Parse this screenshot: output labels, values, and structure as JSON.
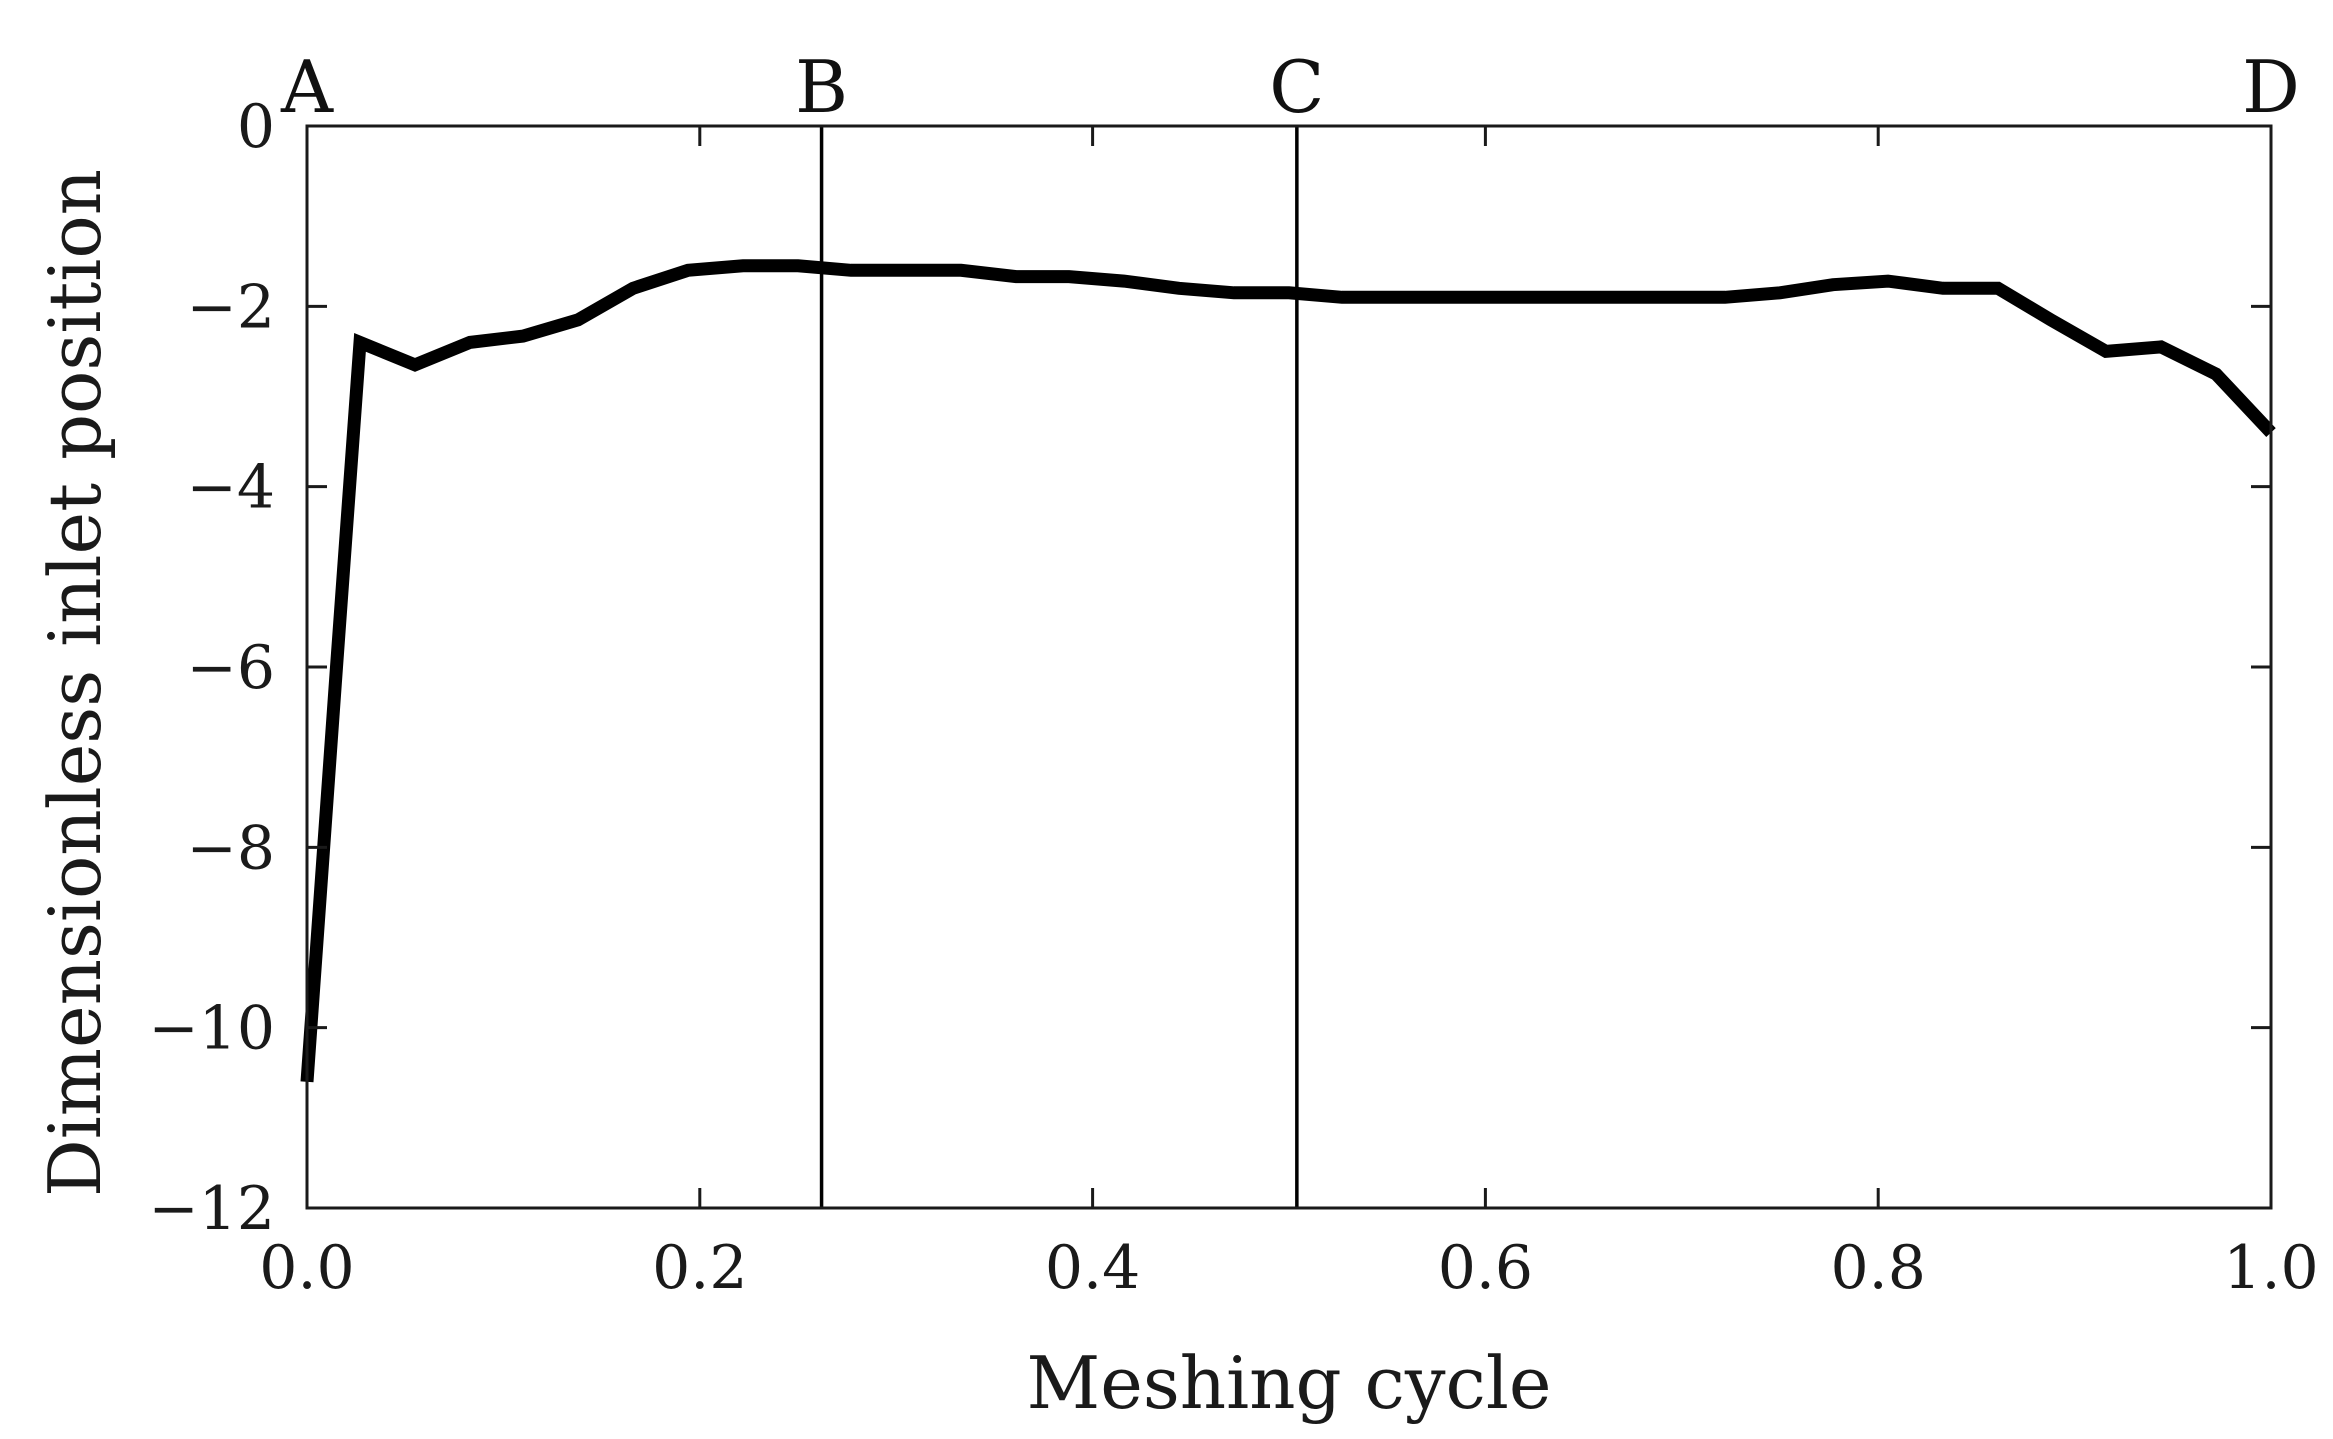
{
  "chart_data": {
    "type": "line",
    "title": "",
    "xlabel": "Meshing cycle",
    "ylabel": "Dimensionless inlet position",
    "xlim": [
      0.0,
      1.0
    ],
    "ylim": [
      -12,
      0
    ],
    "x_ticks": [
      0.0,
      0.2,
      0.4,
      0.6,
      0.8,
      1.0
    ],
    "x_tick_labels": [
      "0.0",
      "0.2",
      "0.4",
      "0.6",
      "0.8",
      "1.0"
    ],
    "y_ticks": [
      0,
      -2,
      -4,
      -6,
      -8,
      -10,
      -12
    ],
    "y_tick_labels": [
      "0",
      "−2",
      "−4",
      "−6",
      "−8",
      "−10",
      "−12"
    ],
    "grid": false,
    "vertical_markers": [
      {
        "label": "A",
        "x": 0.0,
        "line": false
      },
      {
        "label": "B",
        "x": 0.262,
        "line": true
      },
      {
        "label": "C",
        "x": 0.504,
        "line": true
      },
      {
        "label": "D",
        "x": 1.0,
        "line": false
      }
    ],
    "series": [
      {
        "name": "inlet position",
        "color": "#000000",
        "x": [
          0.0,
          0.015,
          0.027,
          0.055,
          0.083,
          0.11,
          0.138,
          0.166,
          0.194,
          0.222,
          0.25,
          0.277,
          0.305,
          0.333,
          0.361,
          0.388,
          0.416,
          0.444,
          0.472,
          0.5,
          0.527,
          0.555,
          0.583,
          0.611,
          0.638,
          0.666,
          0.694,
          0.722,
          0.75,
          0.777,
          0.805,
          0.833,
          0.861,
          0.888,
          0.916,
          0.944,
          0.972,
          1.0
        ],
        "y": [
          -10.6,
          -6.0,
          -2.4,
          -2.65,
          -2.4,
          -2.33,
          -2.15,
          -1.8,
          -1.6,
          -1.55,
          -1.55,
          -1.6,
          -1.6,
          -1.6,
          -1.67,
          -1.67,
          -1.72,
          -1.8,
          -1.85,
          -1.85,
          -1.9,
          -1.9,
          -1.9,
          -1.9,
          -1.9,
          -1.9,
          -1.9,
          -1.9,
          -1.85,
          -1.76,
          -1.72,
          -1.8,
          -1.8,
          -2.15,
          -2.5,
          -2.45,
          -2.75,
          -3.4
        ]
      }
    ]
  }
}
